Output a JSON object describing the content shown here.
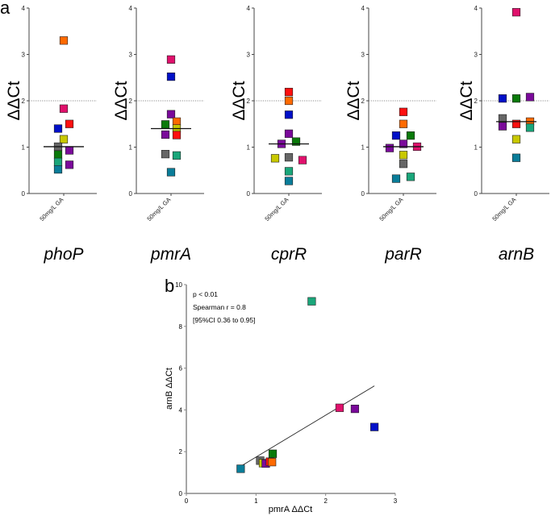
{
  "colors": {
    "orange": "#ff6a00",
    "magenta": "#e0116c",
    "blue": "#0010c8",
    "red": "#ff1010",
    "yellow": "#c8c800",
    "gray": "#666666",
    "green": "#0a7a0a",
    "teal": "#1aa67a",
    "purple": "#7a0a9a",
    "cyan": "#0a7d99"
  },
  "panel_a_label": "a",
  "panel_b_label": "b",
  "chart_data": [
    {
      "type": "scatter",
      "gene": "phoP",
      "ylabel": "ΔΔCt",
      "category": "50mg/L GA",
      "ylim": [
        0,
        4
      ],
      "yticks": [
        "0",
        "1",
        "2",
        "3",
        "4"
      ],
      "threshold": 2,
      "median": 1.01,
      "points": [
        {
          "c": "orange",
          "y": 3.3
        },
        {
          "c": "magenta",
          "y": 1.83
        },
        {
          "c": "blue",
          "y": 1.4
        },
        {
          "c": "red",
          "y": 1.5
        },
        {
          "c": "yellow",
          "y": 1.17
        },
        {
          "c": "gray",
          "y": 1.01
        },
        {
          "c": "green",
          "y": 0.84
        },
        {
          "c": "teal",
          "y": 0.68
        },
        {
          "c": "cyan",
          "y": 0.52
        },
        {
          "c": "purple",
          "y": 0.93
        },
        {
          "c": "purple",
          "y": 0.62
        }
      ]
    },
    {
      "type": "scatter",
      "gene": "pmrA",
      "ylabel": "ΔΔCt",
      "category": "50mg/L GA",
      "ylim": [
        0,
        4
      ],
      "yticks": [
        "0",
        "1",
        "2",
        "3",
        "4"
      ],
      "threshold": 2,
      "median": 1.4,
      "points": [
        {
          "c": "magenta",
          "y": 2.89
        },
        {
          "c": "blue",
          "y": 2.52
        },
        {
          "c": "purple",
          "y": 1.71
        },
        {
          "c": "green",
          "y": 1.49
        },
        {
          "c": "orange",
          "y": 1.55
        },
        {
          "c": "yellow",
          "y": 1.4
        },
        {
          "c": "purple",
          "y": 1.27
        },
        {
          "c": "red",
          "y": 1.26
        },
        {
          "c": "gray",
          "y": 0.85
        },
        {
          "c": "teal",
          "y": 0.82
        },
        {
          "c": "cyan",
          "y": 0.46
        }
      ]
    },
    {
      "type": "scatter",
      "gene": "cprR",
      "ylabel": "ΔΔCt",
      "category": "50mg/L GA",
      "ylim": [
        0,
        4
      ],
      "yticks": [
        "0",
        "1",
        "2",
        "3",
        "4"
      ],
      "threshold": 2,
      "median": 1.07,
      "points": [
        {
          "c": "red",
          "y": 2.19
        },
        {
          "c": "orange",
          "y": 2.0
        },
        {
          "c": "blue",
          "y": 1.7
        },
        {
          "c": "purple",
          "y": 1.29
        },
        {
          "c": "purple",
          "y": 1.07
        },
        {
          "c": "green",
          "y": 1.12
        },
        {
          "c": "yellow",
          "y": 0.76
        },
        {
          "c": "gray",
          "y": 0.78
        },
        {
          "c": "magenta",
          "y": 0.72
        },
        {
          "c": "teal",
          "y": 0.48
        },
        {
          "c": "cyan",
          "y": 0.27
        }
      ]
    },
    {
      "type": "scatter",
      "gene": "parR",
      "ylabel": "ΔΔCt",
      "category": "50mg/L GA",
      "ylim": [
        0,
        4
      ],
      "yticks": [
        "0",
        "1",
        "2",
        "3",
        "4"
      ],
      "threshold": 2,
      "median": 1.01,
      "points": [
        {
          "c": "red",
          "y": 1.76
        },
        {
          "c": "orange",
          "y": 1.5
        },
        {
          "c": "blue",
          "y": 1.25
        },
        {
          "c": "green",
          "y": 1.25
        },
        {
          "c": "purple",
          "y": 1.07
        },
        {
          "c": "purple",
          "y": 0.98
        },
        {
          "c": "magenta",
          "y": 1.01
        },
        {
          "c": "yellow",
          "y": 0.83
        },
        {
          "c": "gray",
          "y": 0.64
        },
        {
          "c": "cyan",
          "y": 0.32
        },
        {
          "c": "teal",
          "y": 0.36
        }
      ]
    },
    {
      "type": "scatter",
      "gene": "arnB",
      "ylabel": "ΔΔCt",
      "category": "50mg/L GA",
      "ylim": [
        0,
        4
      ],
      "yticks": [
        "0",
        "1",
        "2",
        "3",
        "4"
      ],
      "threshold": 2,
      "median": 1.55,
      "points": [
        {
          "c": "magenta",
          "y": 3.91
        },
        {
          "c": "blue",
          "y": 2.05
        },
        {
          "c": "green",
          "y": 2.05
        },
        {
          "c": "purple",
          "y": 2.08
        },
        {
          "c": "gray",
          "y": 1.62
        },
        {
          "c": "purple",
          "y": 1.45
        },
        {
          "c": "red",
          "y": 1.5
        },
        {
          "c": "orange",
          "y": 1.55
        },
        {
          "c": "teal",
          "y": 1.42
        },
        {
          "c": "yellow",
          "y": 1.17
        },
        {
          "c": "cyan",
          "y": 0.77
        }
      ]
    },
    {
      "type": "scatter",
      "xlabel": "pmrA ΔΔCt",
      "ylabel": "arnB ΔΔCt",
      "xlim": [
        0,
        3
      ],
      "ylim": [
        0,
        10
      ],
      "xticks": [
        "0",
        "1",
        "2",
        "3"
      ],
      "yticks": [
        "0",
        "2",
        "4",
        "6",
        "8",
        "10"
      ],
      "annotations": [
        "p < 0.01",
        "Spearman r = 0.8",
        "[95%CI 0.36 to 0.95]"
      ],
      "fit_line": [
        [
          0.78,
          1.3
        ],
        [
          2.7,
          5.15
        ]
      ],
      "points": [
        {
          "c": "teal",
          "x": 1.8,
          "y": 9.2
        },
        {
          "c": "magenta",
          "x": 2.2,
          "y": 4.1
        },
        {
          "c": "purple",
          "x": 2.42,
          "y": 4.05
        },
        {
          "c": "blue",
          "x": 2.7,
          "y": 3.18
        },
        {
          "c": "green",
          "x": 1.24,
          "y": 1.9
        },
        {
          "c": "gray",
          "x": 1.06,
          "y": 1.57
        },
        {
          "c": "yellow",
          "x": 1.1,
          "y": 1.45
        },
        {
          "c": "purple",
          "x": 1.14,
          "y": 1.43
        },
        {
          "c": "red",
          "x": 1.2,
          "y": 1.52
        },
        {
          "c": "orange",
          "x": 1.23,
          "y": 1.5
        },
        {
          "c": "cyan",
          "x": 0.78,
          "y": 1.18
        }
      ]
    }
  ]
}
